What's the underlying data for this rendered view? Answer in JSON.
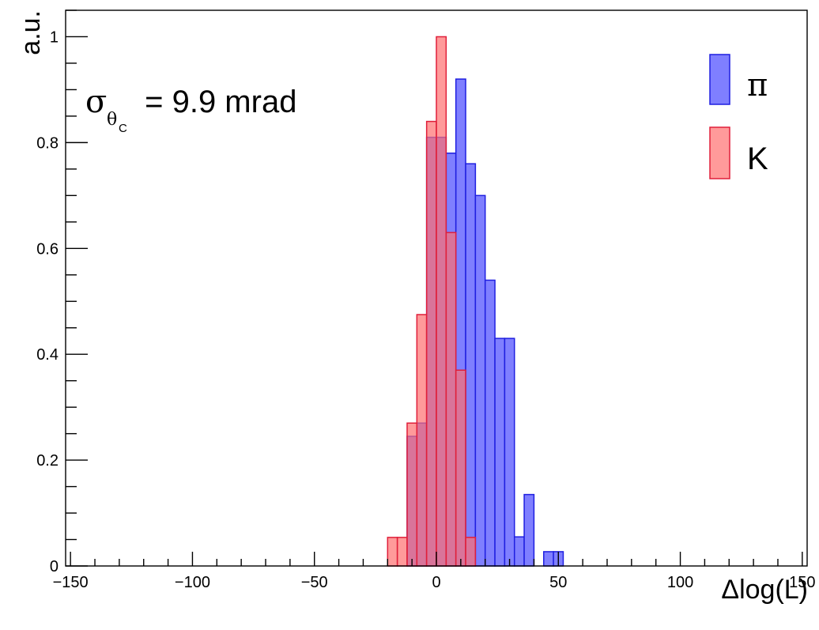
{
  "chart_data": {
    "type": "bar",
    "title": "",
    "xlabel": "Δlog(L)",
    "ylabel": "a.u.",
    "xlim": [
      -152,
      152
    ],
    "ylim": [
      0,
      1.05
    ],
    "grid": false,
    "legend_position": "top-right",
    "annotation": {
      "sigma": "σ",
      "sub_theta": "θ",
      "sub_c": "C",
      "rest": " = 9.9 mrad"
    },
    "x_ticks": [
      {
        "value": -150,
        "label": "−150"
      },
      {
        "value": -100,
        "label": "−100"
      },
      {
        "value": -50,
        "label": "−50"
      },
      {
        "value": 0,
        "label": "0"
      },
      {
        "value": 50,
        "label": "50"
      },
      {
        "value": 100,
        "label": "100"
      },
      {
        "value": 150,
        "label": "150"
      }
    ],
    "y_ticks": [
      {
        "value": 0,
        "label": "0"
      },
      {
        "value": 0.2,
        "label": "0.2"
      },
      {
        "value": 0.4,
        "label": "0.4"
      },
      {
        "value": 0.6,
        "label": "0.6"
      },
      {
        "value": 0.8,
        "label": "0.8"
      },
      {
        "value": 1,
        "label": "1"
      }
    ],
    "series": [
      {
        "name": "π",
        "fill": "#7f7fff",
        "stroke": "#1f1fe0",
        "bins": [
          {
            "x0": -12,
            "x1": -8,
            "y": 0.245
          },
          {
            "x0": -8,
            "x1": -4,
            "y": 0.27
          },
          {
            "x0": -4,
            "x1": 0,
            "y": 0.81
          },
          {
            "x0": 0,
            "x1": 4,
            "y": 0.81
          },
          {
            "x0": 4,
            "x1": 8,
            "y": 0.78
          },
          {
            "x0": 8,
            "x1": 12,
            "y": 0.92
          },
          {
            "x0": 12,
            "x1": 16,
            "y": 0.76
          },
          {
            "x0": 16,
            "x1": 20,
            "y": 0.7
          },
          {
            "x0": 20,
            "x1": 24,
            "y": 0.54
          },
          {
            "x0": 24,
            "x1": 28,
            "y": 0.43
          },
          {
            "x0": 28,
            "x1": 32,
            "y": 0.43
          },
          {
            "x0": 32,
            "x1": 36,
            "y": 0.055
          },
          {
            "x0": 36,
            "x1": 40,
            "y": 0.135
          },
          {
            "x0": 44,
            "x1": 48,
            "y": 0.027
          },
          {
            "x0": 48,
            "x1": 52,
            "y": 0.027
          }
        ]
      },
      {
        "name": "K",
        "fill": "#ff6f6f",
        "stroke": "#e01f3a",
        "bins": [
          {
            "x0": -20,
            "x1": -16,
            "y": 0.054
          },
          {
            "x0": -16,
            "x1": -12,
            "y": 0.054
          },
          {
            "x0": -12,
            "x1": -8,
            "y": 0.27
          },
          {
            "x0": -8,
            "x1": -4,
            "y": 0.475
          },
          {
            "x0": -4,
            "x1": 0,
            "y": 0.84
          },
          {
            "x0": 0,
            "x1": 4,
            "y": 1.0
          },
          {
            "x0": 4,
            "x1": 8,
            "y": 0.63
          },
          {
            "x0": 8,
            "x1": 12,
            "y": 0.37
          },
          {
            "x0": 12,
            "x1": 16,
            "y": 0.054
          }
        ]
      }
    ]
  }
}
